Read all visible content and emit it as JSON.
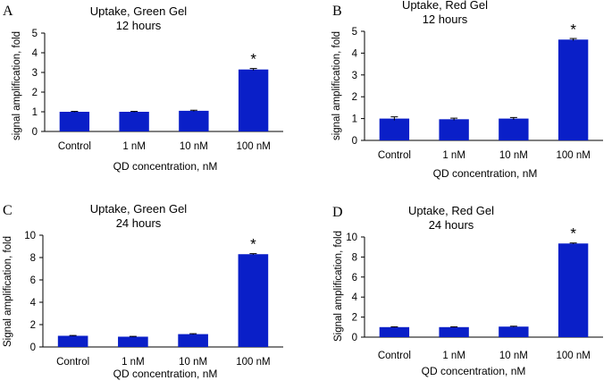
{
  "chart_data": [
    {
      "panel": "A",
      "type": "bar",
      "title": [
        "Uptake, Green Gel",
        "12 hours"
      ],
      "ylabel": "signal amplification, fold",
      "xlabel": "QD concentration, nM",
      "categories": [
        "Control",
        "1 nM",
        "10 nM",
        "100 nM"
      ],
      "values": [
        1.0,
        1.0,
        1.05,
        3.15
      ],
      "errors": [
        0.02,
        0.02,
        0.03,
        0.05
      ],
      "significance": [
        "",
        "",
        "",
        "*"
      ],
      "ylim": [
        0,
        5
      ],
      "yticks": [
        0,
        1,
        2,
        3,
        4,
        5
      ],
      "color": "#0a1fc8"
    },
    {
      "panel": "B",
      "type": "bar",
      "title": [
        "Uptake, Red Gel",
        "12 hours"
      ],
      "ylabel": "signal amplification, fold",
      "xlabel": "QD concentration, nM",
      "categories": [
        "Control",
        "1 nM",
        "10 nM",
        "100 nM"
      ],
      "values": [
        1.0,
        0.97,
        1.0,
        4.62
      ],
      "errors": [
        0.08,
        0.05,
        0.05,
        0.05
      ],
      "significance": [
        "",
        "",
        "",
        "*"
      ],
      "ylim": [
        0,
        5
      ],
      "yticks": [
        0,
        1,
        2,
        3,
        4,
        5
      ],
      "color": "#0a1fc8"
    },
    {
      "panel": "C",
      "type": "bar",
      "title": [
        "Uptake, Green Gel",
        "24 hours"
      ],
      "ylabel": "Signal amplification, fold",
      "xlabel": "QD concentration, nM",
      "categories": [
        "Control",
        "1 nM",
        "10 nM",
        "100 nM"
      ],
      "values": [
        1.0,
        0.92,
        1.15,
        8.3
      ],
      "errors": [
        0.03,
        0.03,
        0.04,
        0.05
      ],
      "significance": [
        "",
        "",
        "",
        "*"
      ],
      "ylim": [
        0,
        10
      ],
      "yticks": [
        0,
        2,
        4,
        6,
        8,
        10
      ],
      "color": "#0a1fc8"
    },
    {
      "panel": "D",
      "type": "bar",
      "title": [
        "Uptake, Red Gel",
        "24 hours"
      ],
      "ylabel": "Signal amplification, fold",
      "xlabel": "QD concentration, nM",
      "categories": [
        "Control",
        "1 nM",
        "10 nM",
        "100 nM"
      ],
      "values": [
        1.0,
        1.0,
        1.05,
        9.35
      ],
      "errors": [
        0.03,
        0.03,
        0.04,
        0.05
      ],
      "significance": [
        "",
        "",
        "",
        "*"
      ],
      "ylim": [
        0,
        10
      ],
      "yticks": [
        0,
        2,
        4,
        6,
        8,
        10
      ],
      "color": "#0a1fc8"
    }
  ]
}
